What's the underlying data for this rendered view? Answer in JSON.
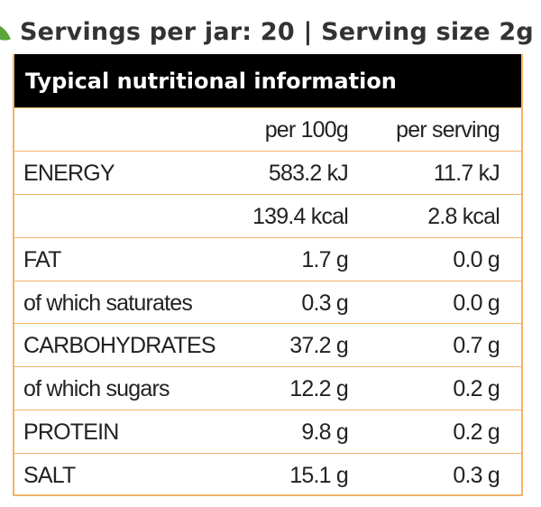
{
  "header": {
    "servings_text": "Servings per jar: 20 | Serving size 2g"
  },
  "table": {
    "title": "Typical nutritional information",
    "columns": {
      "per_100g": "per 100g",
      "per_serving": "per serving"
    },
    "rows": [
      {
        "label": "ENERGY",
        "per_100g": "583.2 kJ",
        "per_serving": "11.7 kJ"
      },
      {
        "label": "",
        "per_100g": "139.4 kcal",
        "per_serving": "2.8 kcal"
      },
      {
        "label": "FAT",
        "per_100g": "1.7 g",
        "per_serving": "0.0 g"
      },
      {
        "label": "of which saturates",
        "per_100g": "0.3 g",
        "per_serving": "0.0 g"
      },
      {
        "label": "CARBOHYDRATES",
        "per_100g": "37.2 g",
        "per_serving": "0.7 g"
      },
      {
        "label": "of which sugars",
        "per_100g": "12.2 g",
        "per_serving": "0.2 g"
      },
      {
        "label": "PROTEIN",
        "per_100g": "9.8 g",
        "per_serving": "0.2 g"
      },
      {
        "label": "SALT",
        "per_100g": "15.1 g",
        "per_serving": "0.3 g"
      }
    ]
  },
  "colors": {
    "border": "#f4b26a",
    "title_bg": "#000000",
    "leaf": "#5aa53a"
  },
  "icons": {
    "leaf": "leaf-icon"
  }
}
